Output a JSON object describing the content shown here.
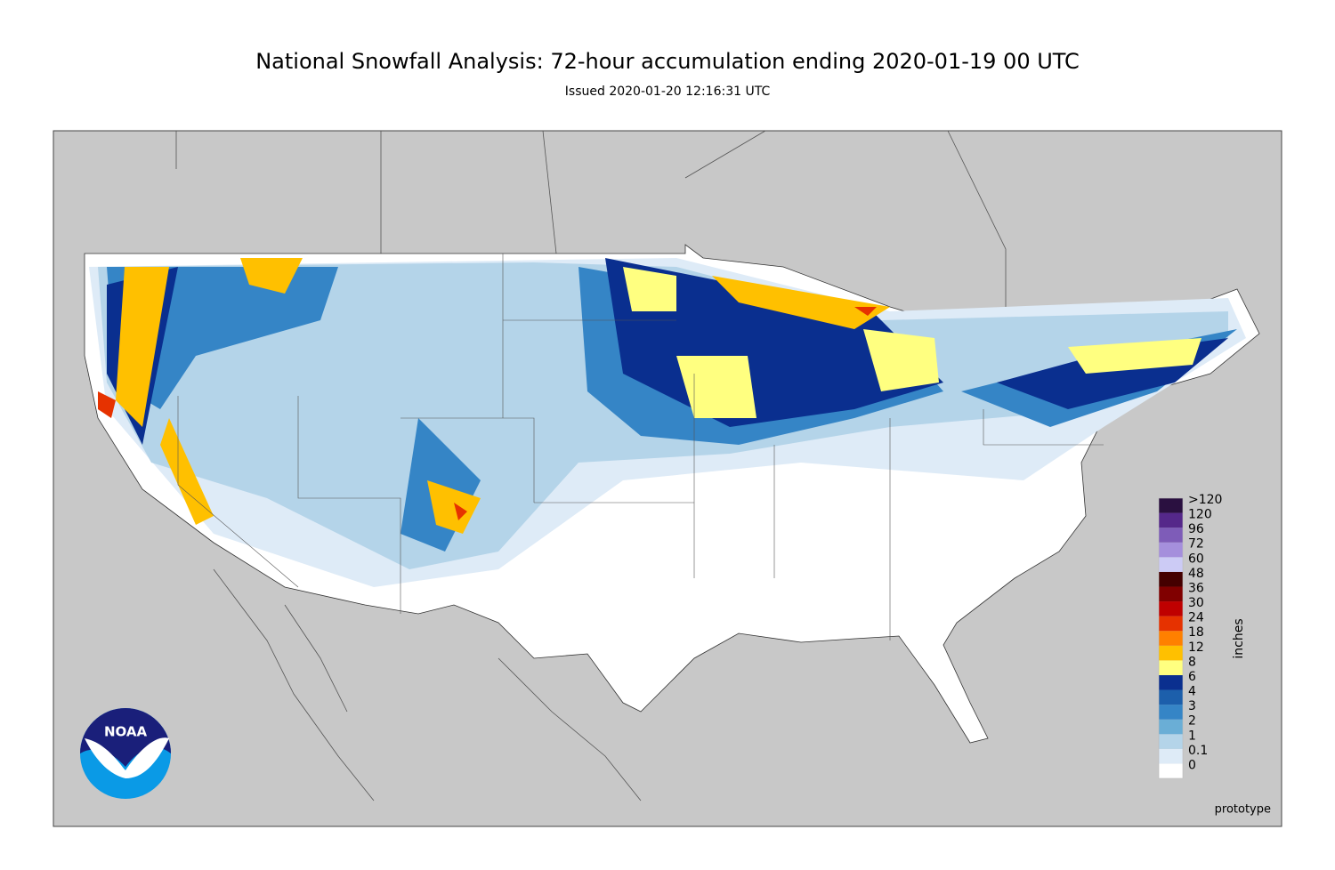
{
  "header": {
    "title": "National Snowfall Analysis: 72-hour accumulation ending 2020-01-19 00 UTC",
    "subtitle": "Issued 2020-01-20 12:16:31 UTC"
  },
  "legend": {
    "title": "inches",
    "items": [
      {
        "label": "0",
        "color": "#ffffff"
      },
      {
        "label": "0.1",
        "color": "#deebf7"
      },
      {
        "label": "1",
        "color": "#b4d4e9"
      },
      {
        "label": "2",
        "color": "#6aaed6"
      },
      {
        "label": "3",
        "color": "#3585c6"
      },
      {
        "label": "4",
        "color": "#1c5fab"
      },
      {
        "label": "6",
        "color": "#0a2f8f"
      },
      {
        "label": "8",
        "color": "#ffff80"
      },
      {
        "label": "12",
        "color": "#ffc000"
      },
      {
        "label": "18",
        "color": "#ff8000"
      },
      {
        "label": "24",
        "color": "#e63200"
      },
      {
        "label": "30",
        "color": "#bf0000"
      },
      {
        "label": "36",
        "color": "#800000"
      },
      {
        "label": "48",
        "color": "#440000"
      },
      {
        "label": "60",
        "color": "#cccbf5"
      },
      {
        "label": "72",
        "color": "#a58fdc"
      },
      {
        "label": "96",
        "color": "#7e5cb8"
      },
      {
        "label": "120",
        "color": "#55288a"
      },
      {
        "label": ">120",
        "color": "#2a1040"
      }
    ]
  },
  "note": "prototype",
  "logo": "NOAA"
}
